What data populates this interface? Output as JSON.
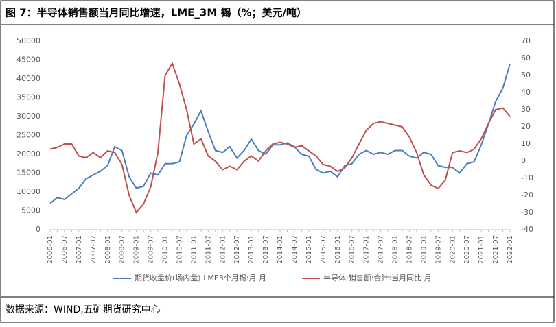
{
  "chart_data": {
    "type": "line",
    "title": "图 7：半导体销售额当月同比增速，LME_3M 锡（%；美元/吨）",
    "categories": [
      "2006-01",
      null,
      "2006-07",
      null,
      "2007-01",
      null,
      "2007-07",
      null,
      "2008-01",
      null,
      "2008-07",
      null,
      "2009-01",
      null,
      "2009-07",
      null,
      "2010-01",
      null,
      "2010-07",
      null,
      "2011-01",
      null,
      "2011-07",
      null,
      "2012-01",
      null,
      "2012-07",
      null,
      "2013-01",
      null,
      "2013-07",
      null,
      "2014-01",
      null,
      "2014-07",
      null,
      "2015-01",
      null,
      "2015-07",
      null,
      "2016-01",
      null,
      "2016-07",
      null,
      "2017-01",
      null,
      "2017-07",
      null,
      "2018-01",
      null,
      "2018-07",
      null,
      "2019-01",
      null,
      "2019-07",
      null,
      "2020-01",
      null,
      "2020-07",
      null,
      "2021-01",
      null,
      "2021-07",
      null,
      "2022-01"
    ],
    "series": [
      {
        "name": "期货收盘价(场内盘):LME3个月锡:月 月",
        "color": "#4a7ebb",
        "axis": "y",
        "values": [
          7000,
          8500,
          8000,
          9500,
          11000,
          13500,
          14500,
          15500,
          17000,
          22000,
          21000,
          14000,
          11000,
          11500,
          15000,
          14500,
          17500,
          17500,
          18000,
          25000,
          28000,
          31500,
          26000,
          21000,
          20500,
          22000,
          19000,
          21000,
          24000,
          21000,
          20000,
          22500,
          22500,
          23000,
          22000,
          20000,
          19500,
          16000,
          15000,
          15500,
          14000,
          17000,
          17500,
          20000,
          21000,
          20000,
          20500,
          20000,
          21000,
          21000,
          19500,
          19000,
          20500,
          20000,
          17000,
          16500,
          16500,
          15000,
          17500,
          18000,
          22500,
          28000,
          34000,
          37500,
          44000
        ]
      },
      {
        "name": "半导体:销售额:合计:当月同比 月",
        "color": "#c0504d",
        "axis": "y2",
        "values": [
          7,
          8,
          10,
          10,
          3,
          2,
          5,
          2,
          6,
          5,
          -2,
          -20,
          -30,
          -25,
          -15,
          5,
          50,
          57,
          45,
          30,
          10,
          13,
          3,
          0,
          -5,
          -3,
          -5,
          0,
          3,
          0,
          6,
          10,
          11,
          10,
          8,
          9,
          6,
          3,
          -2,
          -3,
          -6,
          -4,
          2,
          10,
          18,
          22,
          23,
          22,
          21,
          20,
          14,
          5,
          -8,
          -14,
          -16,
          -11,
          5,
          6,
          5,
          7,
          13,
          22,
          30,
          31,
          26
        ]
      }
    ],
    "ylim": [
      0,
      50000
    ],
    "yticks": [
      0,
      5000,
      10000,
      15000,
      20000,
      25000,
      30000,
      35000,
      40000,
      45000,
      50000
    ],
    "y2lim": [
      -40,
      70
    ],
    "y2ticks": [
      -40,
      -30,
      -20,
      -10,
      0,
      10,
      20,
      30,
      40,
      50,
      60,
      70
    ],
    "grid": false,
    "legend": "bottom"
  },
  "source": "数据来源：WIND,五矿期货研究中心"
}
